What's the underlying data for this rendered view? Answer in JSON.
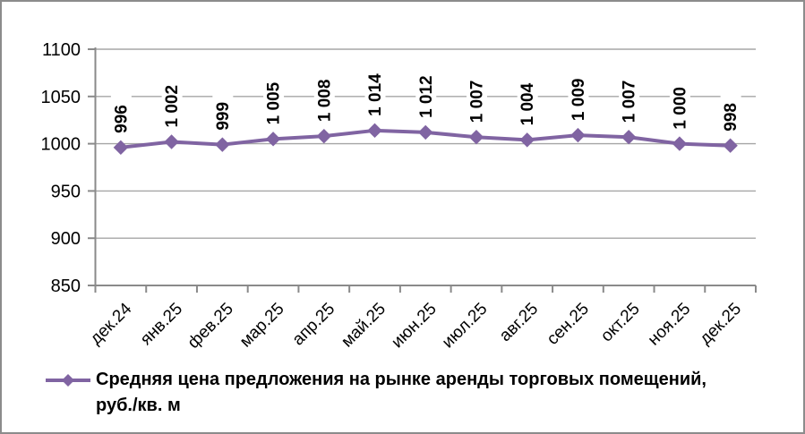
{
  "window": {
    "background": "#ffffff",
    "border_color": "#8c8c8c"
  },
  "chart_data": {
    "type": "line",
    "title": "",
    "categories": [
      "дек.24",
      "янв.25",
      "фев.25",
      "мар.25",
      "апр.25",
      "май.25",
      "июн.25",
      "июл.25",
      "авг.25",
      "сен.25",
      "окт.25",
      "ноя.25",
      "дек.25"
    ],
    "series": [
      {
        "name": "Средняя цена предложения на рынке аренды торговых помещений, руб./кв. м",
        "values": [
          996,
          1002,
          999,
          1005,
          1008,
          1014,
          1012,
          1007,
          1004,
          1009,
          1007,
          1000,
          998
        ],
        "data_labels": [
          "996",
          "1 002",
          "999",
          "1 005",
          "1 008",
          "1 014",
          "1 012",
          "1 007",
          "1 004",
          "1 009",
          "1 007",
          "1 000",
          "998"
        ],
        "color": "#8064A2",
        "marker": "diamond"
      }
    ],
    "xlabel": "",
    "ylabel": "",
    "ylim": [
      850,
      1100
    ],
    "ytick_interval": 50,
    "ytick_labels": [
      "850",
      "900",
      "950",
      "1000",
      "1050",
      "1100"
    ],
    "grid": true,
    "gridline_color": "#a6a6a6",
    "axis_color": "#8a8a8a",
    "text_color": "#000000",
    "legend_position": "bottom",
    "x_tick_label_rotation": 45,
    "data_label_rotation": 90
  },
  "legend": {
    "series_label": "Средняя цена предложения на рынке аренды торговых помещений, руб./кв. м"
  }
}
